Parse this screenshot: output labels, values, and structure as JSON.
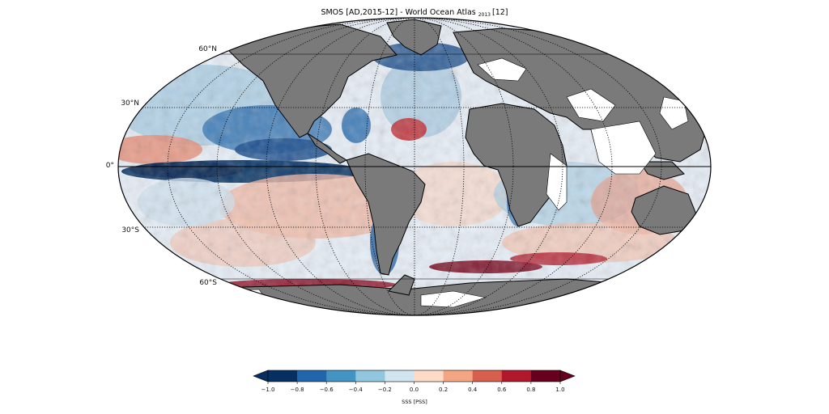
{
  "title": {
    "main": "SMOS [AD,2015-12] - World Ocean Atlas",
    "year_sub": "2013",
    "bracket": "[12]"
  },
  "map": {
    "projection": "mollweide",
    "land_color": "#7a7a7a",
    "no_data_color": "#ffffff",
    "graticule": "dotted",
    "equator_solid": true,
    "lat_labels": [
      {
        "lat": 60,
        "text": "60°N"
      },
      {
        "lat": 30,
        "text": "30°N"
      },
      {
        "lat": 0,
        "text": "0°"
      },
      {
        "lat": -30,
        "text": "30°S"
      },
      {
        "lat": -60,
        "text": "60°S"
      }
    ]
  },
  "colorbar": {
    "label": "SSS [PSS]",
    "min": -1.0,
    "max": 1.0,
    "extend": "both",
    "colors": [
      "#053061",
      "#2166ac",
      "#4393c3",
      "#92c5de",
      "#d1e5f0",
      "#fddbc7",
      "#f4a582",
      "#d6604d",
      "#b2182b",
      "#67001f"
    ],
    "ticks": [
      "-1.0",
      "-0.8",
      "-0.6",
      "-0.4",
      "-0.2",
      "0.0",
      "0.2",
      "0.4",
      "0.6",
      "0.8",
      "1.0"
    ]
  }
}
